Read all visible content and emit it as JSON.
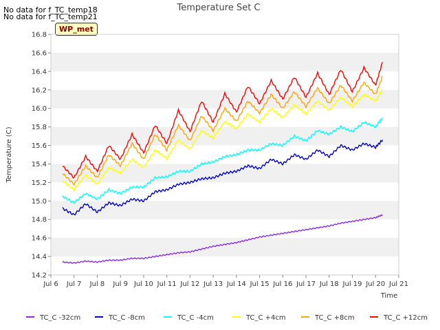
{
  "notices": [
    "No data for f_TC_temp18",
    "No data for f_TC_temp21"
  ],
  "badge": "WP_met",
  "chart_data": {
    "type": "line",
    "title": "Temperature Set C",
    "xlabel": "Time",
    "ylabel": "Temperature (C)",
    "xlim": [
      6,
      21
    ],
    "ylim": [
      14.2,
      16.8
    ],
    "x_ticks": [
      "Jul 6",
      "Jul 7",
      "Jul 8",
      "Jul 9",
      "Jul 10",
      "Jul 11",
      "Jul 12",
      "Jul 13",
      "Jul 14",
      "Jul 15",
      "Jul 16",
      "Jul 17",
      "Jul 18",
      "Jul 19",
      "Jul 20",
      "Jul 21"
    ],
    "y_ticks": [
      "14.2",
      "14.4",
      "14.6",
      "14.8",
      "15.0",
      "15.2",
      "15.4",
      "15.6",
      "15.8",
      "16.0",
      "16.2",
      "16.4",
      "16.6",
      "16.8"
    ],
    "grid": "horizontal bands",
    "legend_position": "bottom",
    "x_days": [
      6.5,
      7.0,
      7.5,
      8.0,
      8.5,
      9.0,
      9.5,
      10.0,
      10.5,
      11.0,
      11.5,
      12.0,
      12.5,
      13.0,
      13.5,
      14.0,
      14.5,
      15.0,
      15.5,
      16.0,
      16.5,
      17.0,
      17.5,
      18.0,
      18.5,
      19.0,
      19.5,
      20.0,
      20.3
    ],
    "series": [
      {
        "name": "TC_C -32cm",
        "color": "#8a2be2",
        "values": [
          14.34,
          14.33,
          14.35,
          14.34,
          14.36,
          14.36,
          14.38,
          14.38,
          14.4,
          14.42,
          14.44,
          14.45,
          14.48,
          14.51,
          14.53,
          14.55,
          14.58,
          14.61,
          14.63,
          14.65,
          14.67,
          14.69,
          14.71,
          14.73,
          14.76,
          14.78,
          14.8,
          14.82,
          14.85
        ]
      },
      {
        "name": "TC_C -8cm",
        "color": "#0000cd",
        "values": [
          14.92,
          14.85,
          14.97,
          14.88,
          14.98,
          14.95,
          15.02,
          15.0,
          15.1,
          15.12,
          15.18,
          15.2,
          15.24,
          15.25,
          15.3,
          15.32,
          15.38,
          15.35,
          15.45,
          15.4,
          15.5,
          15.45,
          15.55,
          15.48,
          15.6,
          15.55,
          15.62,
          15.58,
          15.66
        ]
      },
      {
        "name": "TC_C -4cm",
        "color": "#00ffff",
        "values": [
          15.05,
          14.98,
          15.08,
          15.02,
          15.12,
          15.08,
          15.15,
          15.15,
          15.25,
          15.26,
          15.32,
          15.32,
          15.4,
          15.42,
          15.48,
          15.5,
          15.55,
          15.55,
          15.62,
          15.6,
          15.7,
          15.65,
          15.76,
          15.72,
          15.8,
          15.75,
          15.85,
          15.8,
          15.9
        ]
      },
      {
        "name": "TC_C +4cm",
        "color": "#ffff00",
        "values": [
          15.22,
          15.12,
          15.28,
          15.18,
          15.36,
          15.3,
          15.45,
          15.36,
          15.55,
          15.46,
          15.66,
          15.56,
          15.76,
          15.68,
          15.86,
          15.78,
          15.94,
          15.85,
          16.0,
          15.9,
          16.04,
          15.94,
          16.08,
          15.98,
          16.12,
          16.02,
          16.15,
          16.08,
          16.2
        ]
      },
      {
        "name": "TC_C +8cm",
        "color": "#ffa500",
        "values": [
          15.3,
          15.18,
          15.38,
          15.25,
          15.5,
          15.38,
          15.62,
          15.45,
          15.72,
          15.55,
          15.82,
          15.65,
          15.92,
          15.76,
          16.0,
          15.86,
          16.08,
          15.95,
          16.15,
          16.0,
          16.18,
          16.02,
          16.22,
          16.05,
          16.25,
          16.08,
          16.28,
          16.15,
          16.35
        ]
      },
      {
        "name": "TC_C +12cm",
        "color": "#ff0000",
        "values": [
          15.38,
          15.25,
          15.48,
          15.32,
          15.6,
          15.45,
          15.72,
          15.52,
          15.82,
          15.62,
          15.98,
          15.75,
          16.08,
          15.85,
          16.16,
          15.96,
          16.24,
          16.05,
          16.3,
          16.1,
          16.34,
          16.12,
          16.38,
          16.15,
          16.42,
          16.18,
          16.44,
          16.25,
          16.5
        ]
      }
    ]
  }
}
